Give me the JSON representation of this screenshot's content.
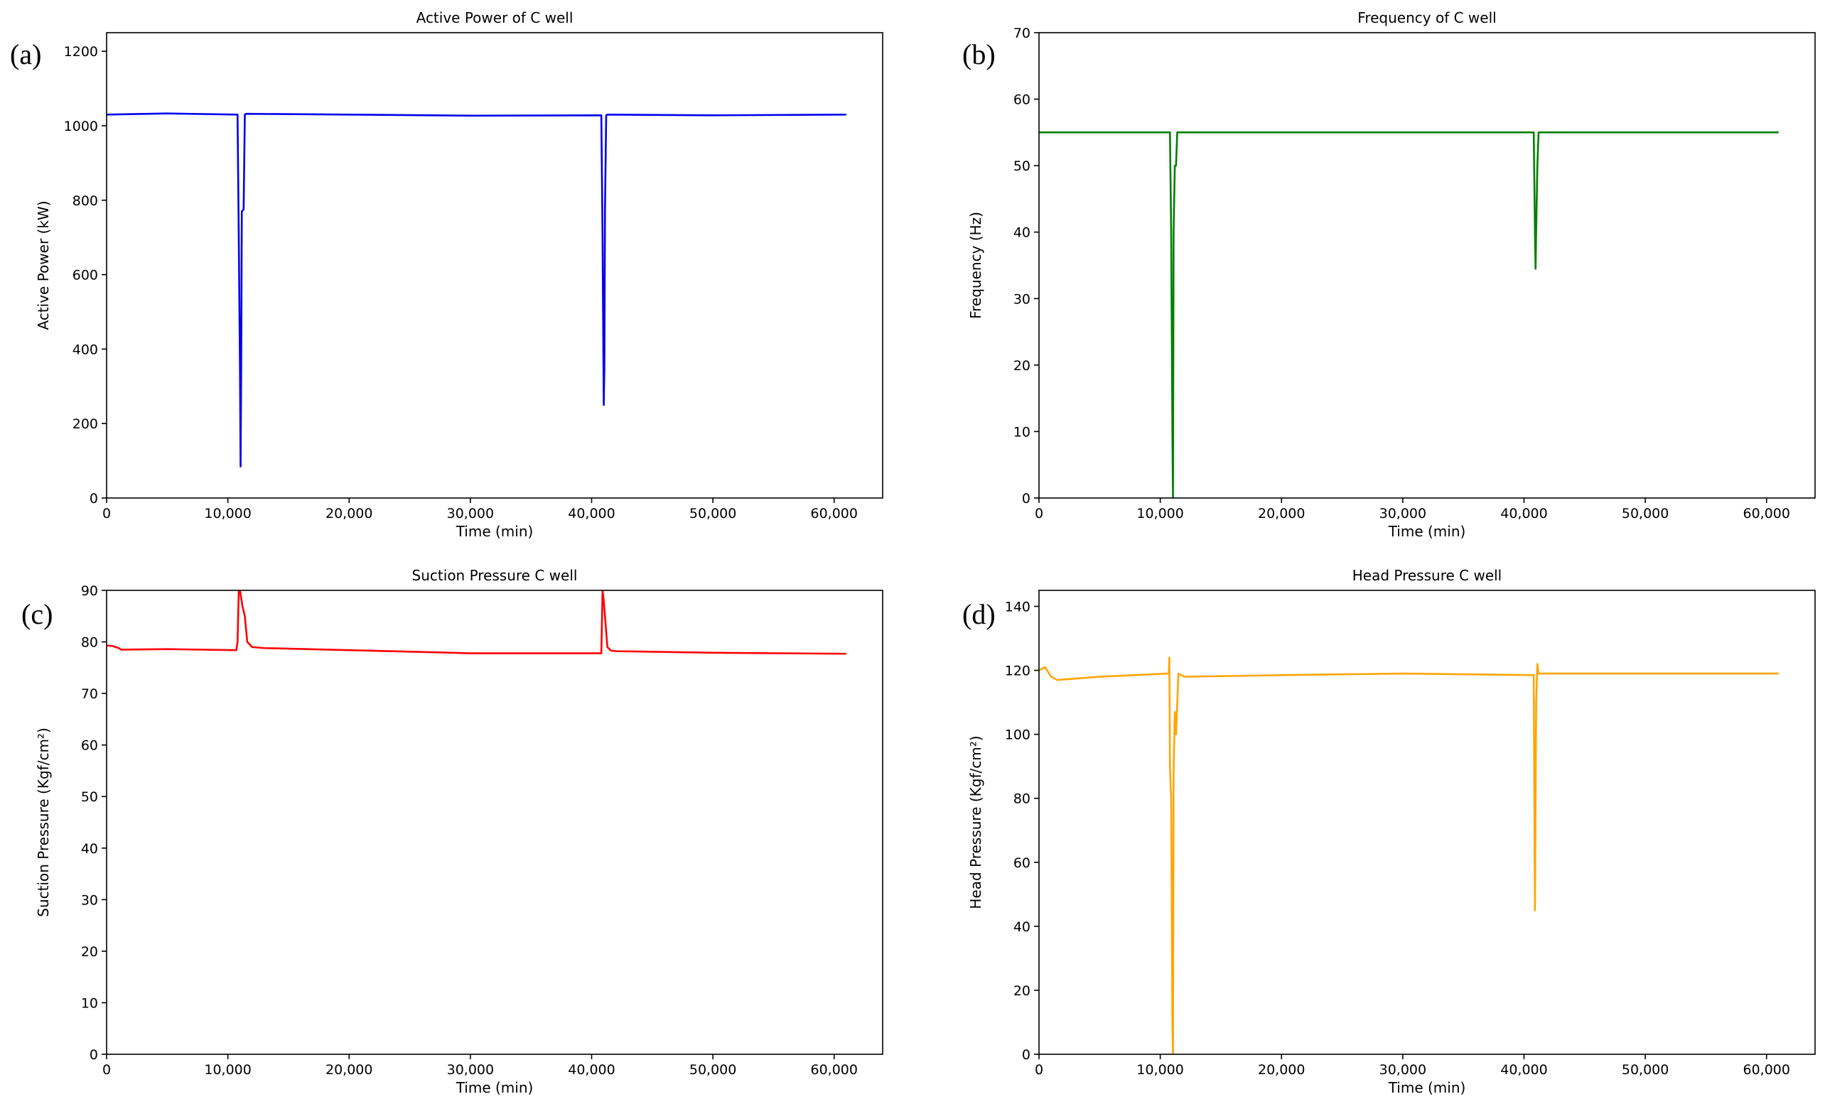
{
  "chart_data": [
    {
      "type": "line",
      "panel_label": "(a)",
      "title": "Active Power of C well",
      "xlabel": "Time (min)",
      "ylabel": "Active Power (kW)",
      "xlim": [
        0,
        64000
      ],
      "ylim": [
        0,
        1250
      ],
      "xticks": [
        0,
        10000,
        20000,
        30000,
        40000,
        50000,
        60000
      ],
      "xtick_labels": [
        "0",
        "10,000",
        "20,000",
        "30,000",
        "40,000",
        "50,000",
        "60,000"
      ],
      "yticks": [
        0,
        200,
        400,
        600,
        800,
        1000,
        1200
      ],
      "ytick_labels": [
        "0",
        "200",
        "400",
        "600",
        "800",
        "1000",
        "1200"
      ],
      "grid": false,
      "series": [
        {
          "color": "#0000ee",
          "x": [
            0,
            5000,
            10800,
            10900,
            11000,
            11050,
            11100,
            11150,
            11300,
            11400,
            11500,
            20000,
            30000,
            40800,
            40900,
            41000,
            41050,
            41100,
            41200,
            41300,
            50000,
            61000
          ],
          "y": [
            1030,
            1033,
            1030,
            700,
            350,
            85,
            350,
            770,
            775,
            1030,
            1032,
            1030,
            1027,
            1028,
            700,
            250,
            350,
            770,
            1028,
            1030,
            1028,
            1030
          ]
        }
      ]
    },
    {
      "type": "line",
      "panel_label": "(b)",
      "title": "Frequency of C well",
      "xlabel": "Time (min)",
      "ylabel": "Frequency (Hz)",
      "xlim": [
        0,
        64000
      ],
      "ylim": [
        0,
        70
      ],
      "xticks": [
        0,
        10000,
        20000,
        30000,
        40000,
        50000,
        60000
      ],
      "xtick_labels": [
        "0",
        "10,000",
        "20,000",
        "30,000",
        "40,000",
        "50,000",
        "60,000"
      ],
      "yticks": [
        0,
        10,
        20,
        30,
        40,
        50,
        60,
        70
      ],
      "ytick_labels": [
        "0",
        "10",
        "20",
        "30",
        "40",
        "50",
        "60",
        "70"
      ],
      "grid": false,
      "series": [
        {
          "color": "#008000",
          "x": [
            0,
            10800,
            10900,
            11000,
            11050,
            11100,
            11200,
            11300,
            11400,
            20000,
            30000,
            40800,
            40900,
            40950,
            41000,
            41100,
            41200,
            50000,
            61000
          ],
          "y": [
            55,
            55,
            40,
            10,
            0,
            40,
            50,
            50,
            55,
            55,
            55,
            55,
            40,
            34.5,
            40,
            50,
            55,
            55,
            55
          ]
        }
      ]
    },
    {
      "type": "line",
      "panel_label": "(c)",
      "title": "Suction Pressure C well",
      "xlabel": "Time (min)",
      "ylabel": "Suction Pressure (Kgf/cm²)",
      "xlim": [
        0,
        64000
      ],
      "ylim": [
        0,
        90
      ],
      "xticks": [
        0,
        10000,
        20000,
        30000,
        40000,
        50000,
        60000
      ],
      "xtick_labels": [
        "0",
        "10,000",
        "20,000",
        "30,000",
        "40,000",
        "50,000",
        "60,000"
      ],
      "yticks": [
        0,
        10,
        20,
        30,
        40,
        50,
        60,
        70,
        80,
        90
      ],
      "ytick_labels": [
        "0",
        "10",
        "20",
        "30",
        "40",
        "50",
        "60",
        "70",
        "80",
        "90"
      ],
      "grid": false,
      "series": [
        {
          "color": "#ff0000",
          "x": [
            0,
            500,
            1000,
            1200,
            5000,
            10700,
            10800,
            10900,
            11000,
            11200,
            11400,
            11600,
            12000,
            13000,
            20000,
            30000,
            40800,
            40900,
            41000,
            41100,
            41300,
            41600,
            42000,
            50000,
            61000
          ],
          "y": [
            79.3,
            79.2,
            78.8,
            78.5,
            78.6,
            78.4,
            80,
            90,
            90,
            87,
            85,
            80,
            79,
            78.8,
            78.4,
            77.8,
            77.8,
            90,
            88,
            85,
            79,
            78.3,
            78.2,
            77.9,
            77.7
          ]
        }
      ]
    },
    {
      "type": "line",
      "panel_label": "(d)",
      "title": "Head Pressure C well",
      "xlabel": "Time (min)",
      "ylabel": "Head Pressure (Kgf/cm²)",
      "xlim": [
        0,
        64000
      ],
      "ylim": [
        0,
        145
      ],
      "xticks": [
        0,
        10000,
        20000,
        30000,
        40000,
        50000,
        60000
      ],
      "xtick_labels": [
        "0",
        "10,000",
        "20,000",
        "30,000",
        "40,000",
        "50,000",
        "60,000"
      ],
      "yticks": [
        0,
        20,
        40,
        60,
        80,
        100,
        120,
        140
      ],
      "ytick_labels": [
        "0",
        "20",
        "40",
        "60",
        "80",
        "100",
        "120",
        "140"
      ],
      "grid": false,
      "series": [
        {
          "color": "#ffa500",
          "x": [
            0,
            500,
            1000,
            1500,
            5000,
            10700,
            10750,
            10800,
            10900,
            11000,
            11050,
            11100,
            11200,
            11300,
            11500,
            12000,
            20000,
            30000,
            40800,
            40850,
            40900,
            41000,
            41100,
            41200,
            50000,
            61000
          ],
          "y": [
            120,
            121,
            118,
            117,
            118,
            119,
            124,
            90,
            80,
            10,
            0,
            88,
            107,
            100,
            119,
            118,
            118.5,
            119,
            118.5,
            80,
            45,
            110,
            122,
            119,
            119,
            119
          ]
        }
      ]
    }
  ]
}
